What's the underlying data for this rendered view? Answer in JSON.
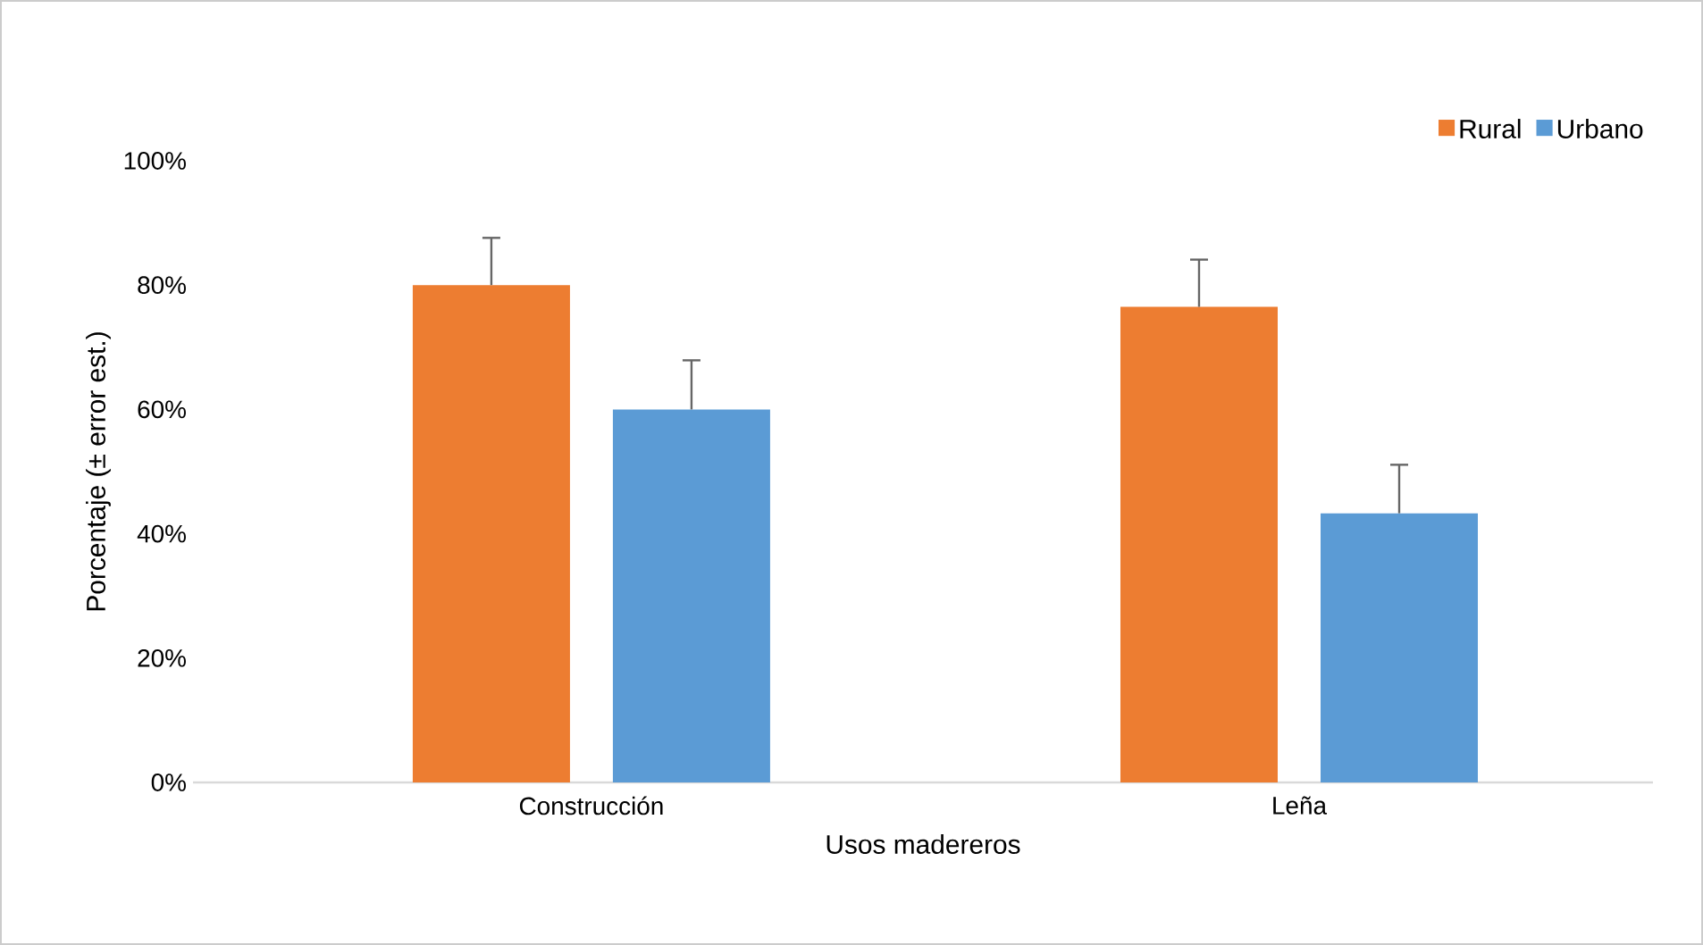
{
  "chart_data": {
    "type": "bar",
    "xlabel": "Usos madereros",
    "ylabel": "Porcentaje (± error est.)",
    "categories": [
      "Construcción",
      "Leña"
    ],
    "series": [
      {
        "name": "Rural",
        "color": "#ed7d31",
        "values": [
          80,
          76.5
        ],
        "errors": [
          [
            80,
            87.6
          ],
          [
            76.5,
            84.1
          ]
        ]
      },
      {
        "name": "Urbano",
        "color": "#5b9bd5",
        "values": [
          60,
          43.3
        ],
        "errors": [
          [
            60,
            67.9
          ],
          [
            43.3,
            51.1
          ]
        ]
      }
    ],
    "ylim": [
      0,
      100
    ],
    "yticks": [
      {
        "value": 0,
        "label": "0%"
      },
      {
        "value": 20,
        "label": "20%"
      },
      {
        "value": 40,
        "label": "40%"
      },
      {
        "value": 60,
        "label": "60%"
      },
      {
        "value": 80,
        "label": "80%"
      },
      {
        "value": 100,
        "label": "100%"
      }
    ],
    "legend": "top right"
  }
}
